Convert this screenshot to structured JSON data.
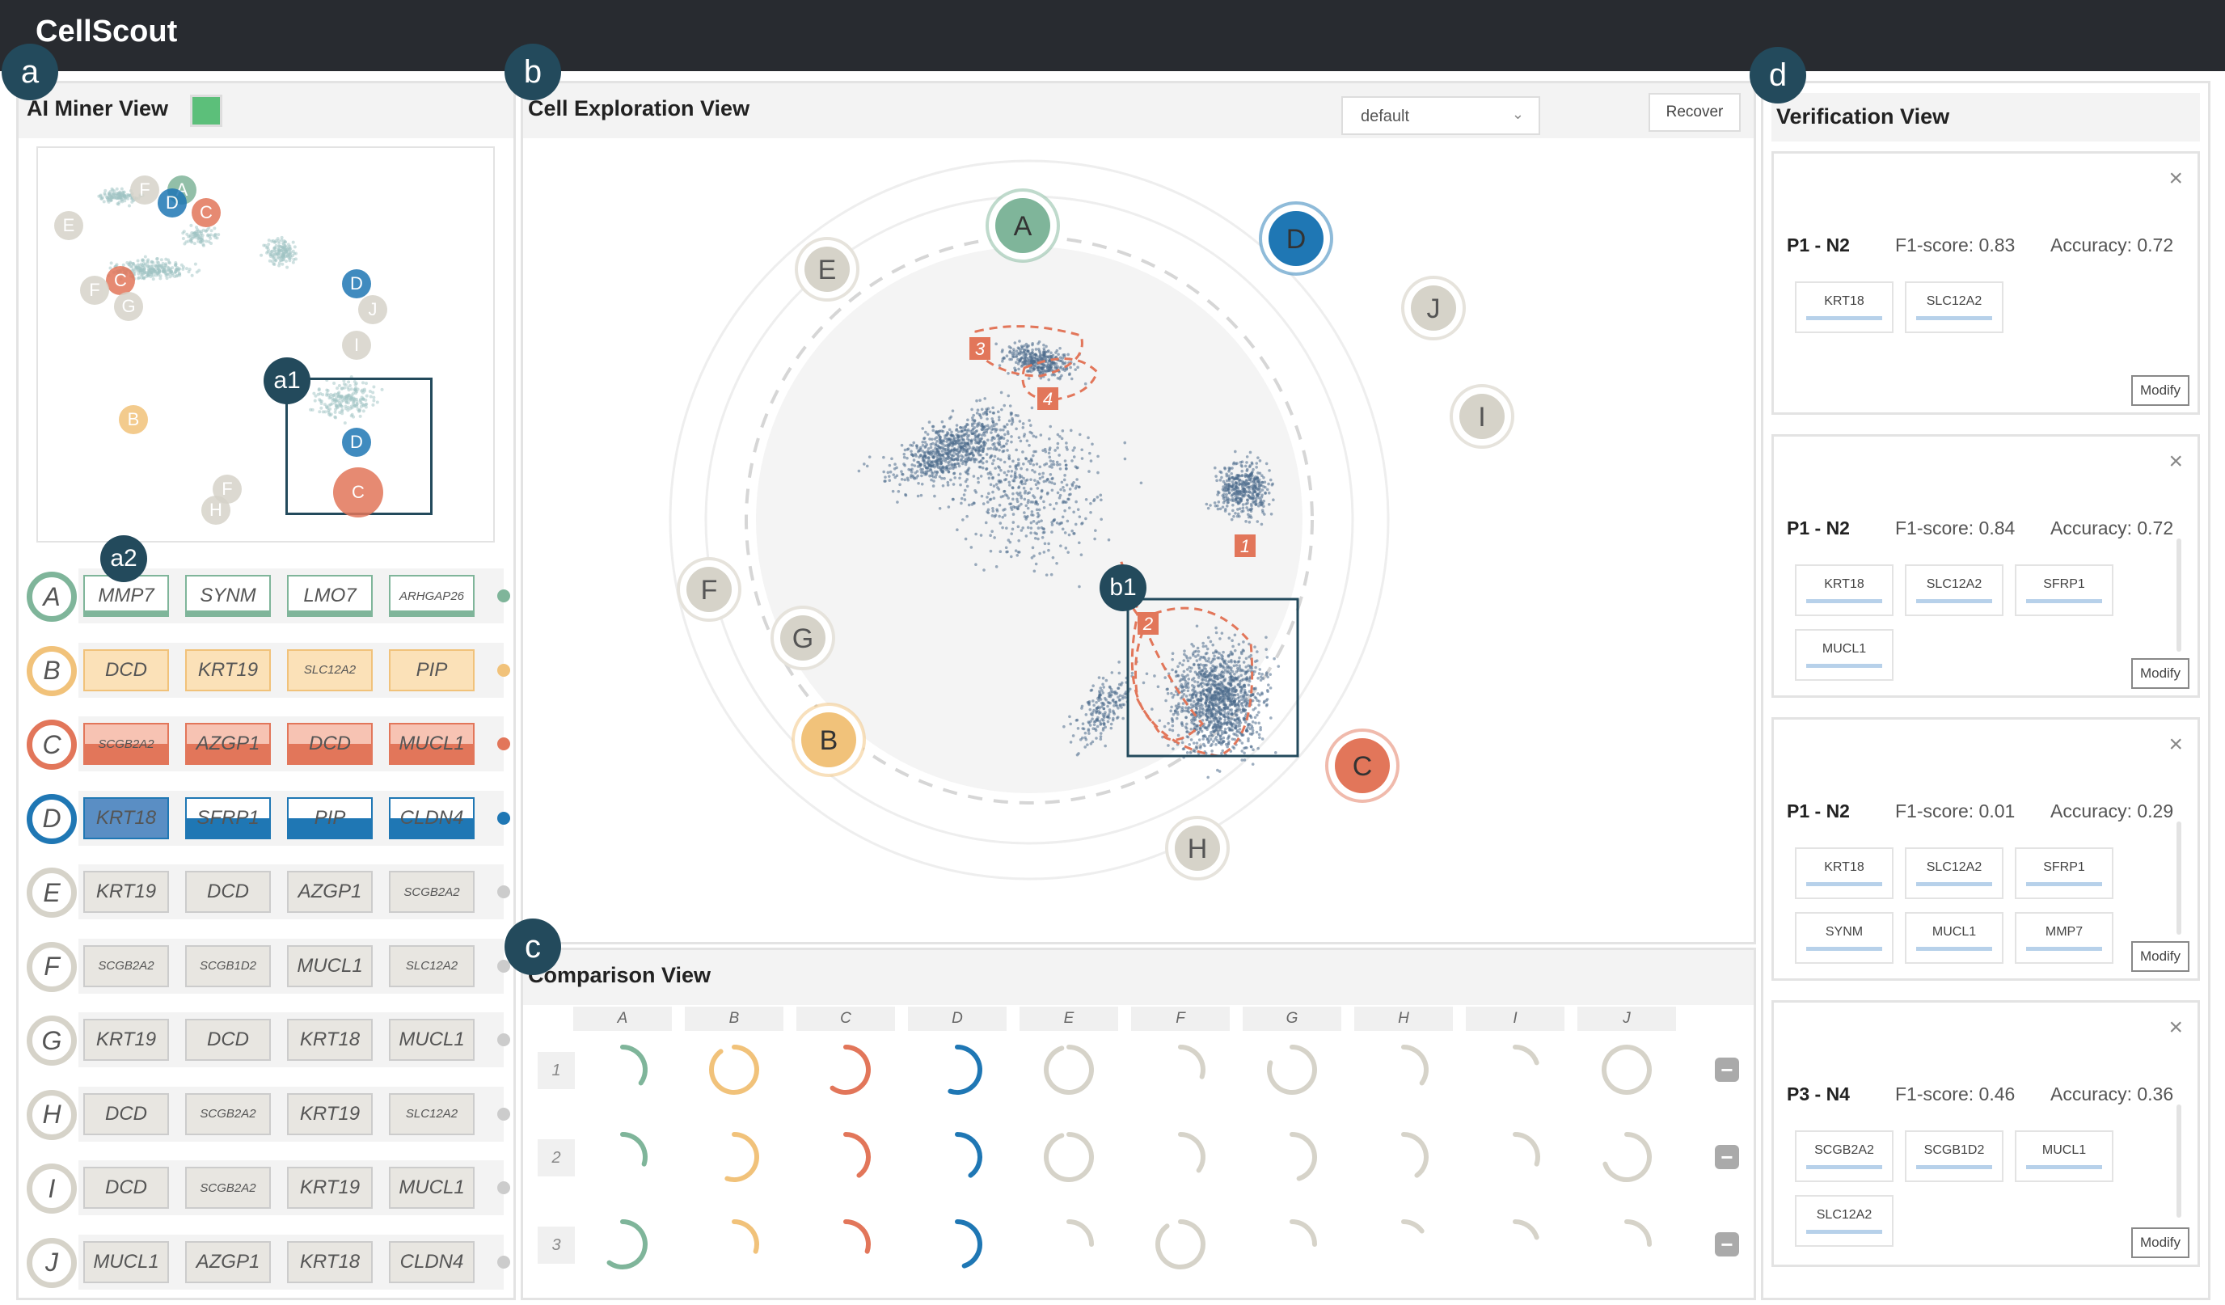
{
  "app_title": "CellScout",
  "badges": {
    "a": "a",
    "b": "b",
    "c": "c",
    "d": "d",
    "a1": "a1",
    "a2": "a2",
    "b1": "b1"
  },
  "ai_miner": {
    "title": "AI Miner View",
    "colors": {
      "A": "#7fb59a",
      "B": "#f1c27a",
      "C": "#e2765a",
      "D": "#1f77b4",
      "E": "#d6d3c9",
      "F": "#d6d3c9",
      "G": "#d6d3c9",
      "H": "#d6d3c9",
      "I": "#d6d3c9",
      "J": "#d6d3c9"
    },
    "mini_labels": [
      "F",
      "A",
      "D",
      "C",
      "E",
      "C",
      "F",
      "G",
      "D",
      "J",
      "I",
      "B",
      "D",
      "C",
      "F",
      "H"
    ],
    "rows": [
      {
        "label": "A",
        "genes": [
          "MMP7",
          "SYNM",
          "LMO7",
          "ARHGAP26"
        ]
      },
      {
        "label": "B",
        "genes": [
          "DCD",
          "KRT19",
          "SLC12A2",
          "PIP"
        ]
      },
      {
        "label": "C",
        "genes": [
          "SCGB2A2",
          "AZGP1",
          "DCD",
          "MUCL1"
        ]
      },
      {
        "label": "D",
        "genes": [
          "KRT18",
          "SFRP1",
          "PIP",
          "CLDN4"
        ]
      },
      {
        "label": "E",
        "genes": [
          "KRT19",
          "DCD",
          "AZGP1",
          "SCGB2A2"
        ]
      },
      {
        "label": "F",
        "genes": [
          "SCGB2A2",
          "SCGB1D2",
          "MUCL1",
          "SLC12A2"
        ]
      },
      {
        "label": "G",
        "genes": [
          "KRT19",
          "DCD",
          "KRT18",
          "MUCL1"
        ]
      },
      {
        "label": "H",
        "genes": [
          "DCD",
          "SCGB2A2",
          "KRT19",
          "SLC12A2"
        ]
      },
      {
        "label": "I",
        "genes": [
          "DCD",
          "SCGB2A2",
          "KRT19",
          "MUCL1"
        ]
      },
      {
        "label": "J",
        "genes": [
          "MUCL1",
          "AZGP1",
          "KRT18",
          "CLDN4"
        ]
      }
    ]
  },
  "cell_exploration": {
    "title": "Cell Exploration View",
    "dropdown_value": "default",
    "recover_label": "Recover",
    "cluster_nodes": [
      "A",
      "D",
      "J",
      "I",
      "C",
      "H",
      "B",
      "G",
      "F",
      "E"
    ],
    "region_labels": [
      "3",
      "4",
      "2",
      "1"
    ]
  },
  "comparison": {
    "title": "Comparison View",
    "columns": [
      "A",
      "B",
      "C",
      "D",
      "E",
      "F",
      "G",
      "H",
      "I",
      "J"
    ],
    "rows": [
      "1",
      "2",
      "3"
    ],
    "minus_label": "−"
  },
  "verification": {
    "title": "Verification View",
    "close_label": "×",
    "modify_label": "Modify",
    "cards": [
      {
        "name": "P1 - N2",
        "f1": "F1-score: 0.83",
        "acc": "Accuracy: 0.72",
        "genes": [
          "KRT18",
          "SLC12A2"
        ]
      },
      {
        "name": "P1 - N2",
        "f1": "F1-score: 0.84",
        "acc": "Accuracy: 0.72",
        "genes": [
          "KRT18",
          "SLC12A2",
          "SFRP1",
          "MUCL1"
        ]
      },
      {
        "name": "P1 - N2",
        "f1": "F1-score: 0.01",
        "acc": "Accuracy: 0.29",
        "genes": [
          "KRT18",
          "SLC12A2",
          "SFRP1",
          "SYNM",
          "MUCL1",
          "MMP7"
        ]
      },
      {
        "name": "P3 - N4",
        "f1": "F1-score: 0.46",
        "acc": "Accuracy: 0.36",
        "genes": [
          "SCGB2A2",
          "SCGB1D2",
          "MUCL1",
          "SLC12A2"
        ]
      }
    ]
  }
}
